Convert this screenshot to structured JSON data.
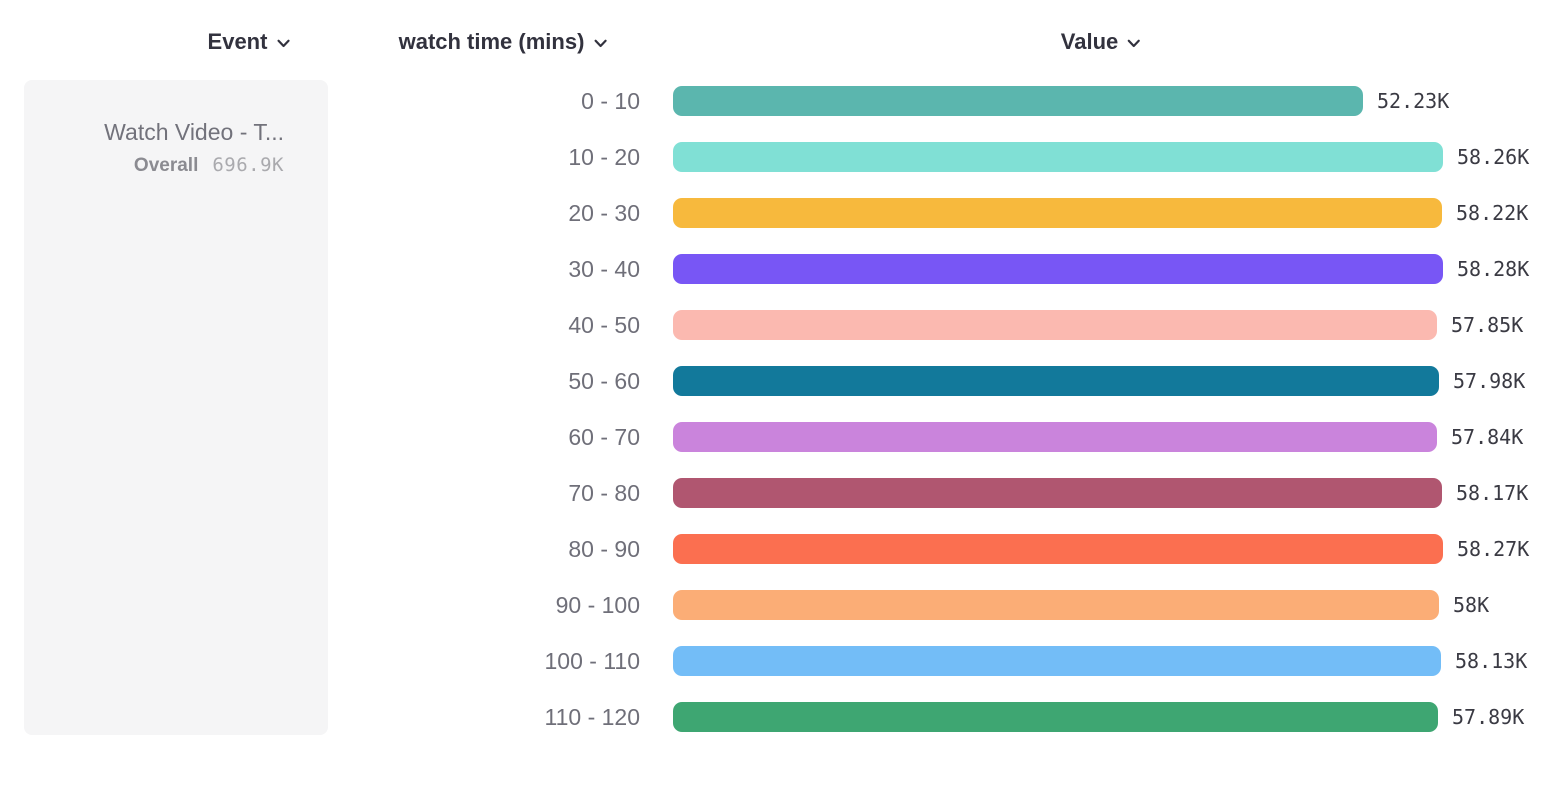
{
  "header": {
    "columns": [
      {
        "label": "Event"
      },
      {
        "label": "watch time (mins)"
      },
      {
        "label": "Value"
      }
    ]
  },
  "event_card": {
    "title": "Watch Video - T...",
    "overall_label": "Overall",
    "overall_value": "696.9K"
  },
  "chart_data": {
    "type": "bar",
    "orientation": "horizontal",
    "title": "",
    "xlabel": "Value",
    "ylabel": "watch time (mins)",
    "categories": [
      "0 - 10",
      "10 - 20",
      "20 - 30",
      "30 - 40",
      "40 - 50",
      "50 - 60",
      "60 - 70",
      "70 - 80",
      "80 - 90",
      "90 - 100",
      "100 - 110",
      "110 - 120"
    ],
    "values": [
      52230,
      58260,
      58220,
      58280,
      57850,
      57980,
      57840,
      58170,
      58270,
      58000,
      58130,
      57890
    ],
    "value_labels": [
      "52.23K",
      "58.26K",
      "58.22K",
      "58.28K",
      "57.85K",
      "57.98K",
      "57.84K",
      "58.17K",
      "58.27K",
      "58K",
      "58.13K",
      "57.89K"
    ],
    "bar_colors": [
      "#5BB6AE",
      "#80E0D5",
      "#F7B93D",
      "#7856F5",
      "#FBB9B0",
      "#12799B",
      "#CA84DC",
      "#B05670",
      "#FB6F50",
      "#FBAD76",
      "#73BDF7",
      "#3EA672"
    ],
    "xlim": [
      0,
      58280
    ],
    "grid": false,
    "legend": null
  }
}
